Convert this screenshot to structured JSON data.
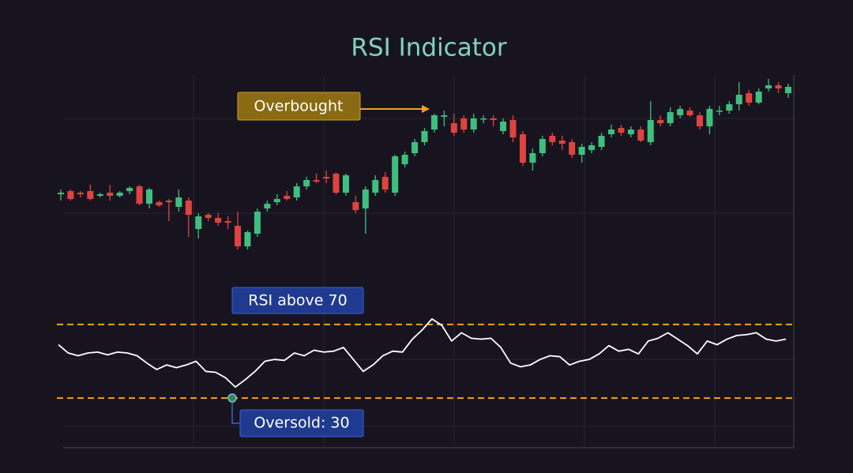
{
  "chart_data": [
    {
      "type": "candlestick",
      "title": "RSI Indicator",
      "ylim": [
        0,
        125
      ],
      "up_color": "#3fbf7f",
      "down_color": "#e0433f",
      "open": [
        47,
        49,
        48,
        49,
        46,
        48,
        46,
        49,
        52,
        41,
        42,
        43,
        39,
        43,
        25,
        34,
        32,
        30,
        27,
        14,
        22,
        38,
        42,
        46,
        45,
        52,
        56,
        58,
        60,
        48,
        42,
        38,
        48,
        58,
        48,
        66,
        73,
        80,
        88,
        96,
        92,
        95,
        88,
        95,
        95,
        87,
        94,
        85,
        67,
        73,
        84,
        81,
        80,
        72,
        75,
        77,
        85,
        89,
        85,
        88,
        80,
        94,
        92,
        97,
        100,
        97,
        90,
        100,
        100,
        104,
        111,
        105,
        114,
        116,
        111
      ],
      "high": [
        50,
        50,
        49,
        53,
        48,
        53,
        49,
        52,
        53,
        51,
        43,
        44,
        50,
        45,
        35,
        35,
        35,
        33,
        36,
        24,
        38,
        43,
        47,
        49,
        54,
        58,
        60,
        62,
        61,
        60,
        46,
        52,
        59,
        61,
        72,
        74,
        82,
        89,
        98,
        100,
        98,
        97,
        98,
        97,
        97,
        95,
        97,
        87,
        76,
        84,
        86,
        84,
        82,
        79,
        80,
        86,
        91,
        91,
        90,
        90,
        106,
        97,
        102,
        103,
        102,
        99,
        103,
        103,
        106,
        118,
        113,
        114,
        120,
        118,
        117
      ],
      "low": [
        43,
        43,
        45,
        43,
        45,
        43,
        45,
        47,
        40,
        38,
        39,
        30,
        36,
        20,
        19,
        30,
        27,
        25,
        12,
        12,
        20,
        36,
        40,
        43,
        43,
        50,
        54,
        54,
        47,
        46,
        35,
        22,
        46,
        48,
        46,
        64,
        71,
        78,
        86,
        90,
        84,
        86,
        86,
        92,
        90,
        85,
        80,
        65,
        62,
        71,
        78,
        75,
        70,
        67,
        73,
        75,
        83,
        84,
        83,
        80,
        78,
        90,
        90,
        95,
        96,
        88,
        85,
        97,
        98,
        100,
        103,
        104,
        112,
        111,
        108
      ],
      "close": [
        48,
        44,
        47,
        44,
        47,
        46,
        48,
        51,
        41,
        50,
        40,
        42,
        45,
        34,
        33,
        32,
        29,
        29,
        14,
        23,
        36,
        41,
        44,
        44,
        52,
        56,
        55,
        57,
        48,
        59,
        37,
        50,
        56,
        50,
        71,
        72,
        80,
        87,
        97,
        97,
        86,
        88,
        95,
        95,
        94,
        93,
        83,
        67,
        73,
        82,
        80,
        79,
        72,
        77,
        78,
        84,
        88,
        86,
        88,
        81,
        94,
        92,
        99,
        101,
        97,
        90,
        101,
        100,
        104,
        110,
        105,
        112,
        116,
        114,
        115
      ],
      "annotations": [
        "Overbought"
      ]
    },
    {
      "type": "line",
      "ylim": [
        0,
        100
      ],
      "color": "#ffffff",
      "values": [
        59,
        54.5,
        53,
        54.5,
        55,
        53.5,
        55,
        54.5,
        53,
        49,
        45.5,
        48,
        46.5,
        48,
        50,
        44.5,
        44,
        41,
        36,
        40,
        44.5,
        50,
        51,
        50.5,
        54.5,
        53,
        56,
        55,
        55.5,
        57.5,
        51,
        44.5,
        48,
        53,
        55.5,
        55,
        62,
        67,
        73,
        69.5,
        61,
        65.5,
        62.5,
        62,
        62.5,
        57.5,
        49,
        47,
        48,
        51,
        53,
        52.5,
        48,
        50,
        51,
        54,
        58.5,
        55.5,
        56.5,
        54,
        61,
        62.5,
        65.5,
        62,
        58.5,
        54,
        61,
        59,
        62,
        64,
        64.5,
        65.5,
        62,
        61,
        62
      ],
      "levels": [
        70,
        30
      ],
      "level_color": "#f0a020",
      "annotations": [
        "RSI above 70",
        "Oversold: 30"
      ]
    }
  ]
}
